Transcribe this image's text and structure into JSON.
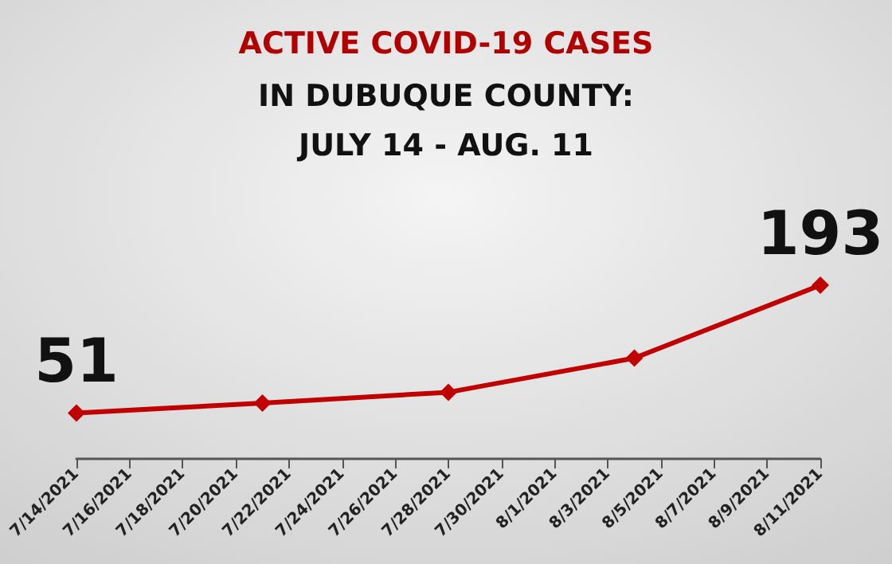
{
  "chart_data": {
    "type": "line",
    "title": "ACTIVE COVID-19 CASES",
    "subtitle": "IN DUBUQUE COUNTY:\nJULY 14 - AUG. 11",
    "x": [
      "2021-07-14",
      "2021-07-21",
      "2021-07-28",
      "2021-08-04",
      "2021-08-11"
    ],
    "series": [
      {
        "color": "#c00000",
        "values": [
          51,
          62,
          74,
          112,
          193
        ],
        "value_labels": [
          "51",
          null,
          null,
          null,
          "193"
        ]
      }
    ],
    "xlim": [
      "2021-07-14",
      "2021-08-11"
    ],
    "xticks": [
      {
        "value": "2021-07-14",
        "label": "7/14/2021"
      },
      {
        "value": "2021-07-16",
        "label": "7/16/2021"
      },
      {
        "value": "2021-07-18",
        "label": "7/18/2021"
      },
      {
        "value": "2021-07-20",
        "label": "7/20/2021"
      },
      {
        "value": "2021-07-22",
        "label": "7/22/2021"
      },
      {
        "value": "2021-07-24",
        "label": "7/24/2021"
      },
      {
        "value": "2021-07-26",
        "label": "7/26/2021"
      },
      {
        "value": "2021-07-28",
        "label": "7/28/2021"
      },
      {
        "value": "2021-07-30",
        "label": "7/30/2021"
      },
      {
        "value": "2021-08-01",
        "label": "8/1/2021"
      },
      {
        "value": "2021-08-03",
        "label": "8/3/2021"
      },
      {
        "value": "2021-08-05",
        "label": "8/5/2021"
      },
      {
        "value": "2021-08-07",
        "label": "8/7/2021"
      },
      {
        "value": "2021-08-09",
        "label": "8/9/2021"
      },
      {
        "value": "2021-08-11",
        "label": "8/11/2021"
      }
    ],
    "tick_labels": "x",
    "grid": false,
    "marker": "diamond",
    "line_style": "solid"
  }
}
